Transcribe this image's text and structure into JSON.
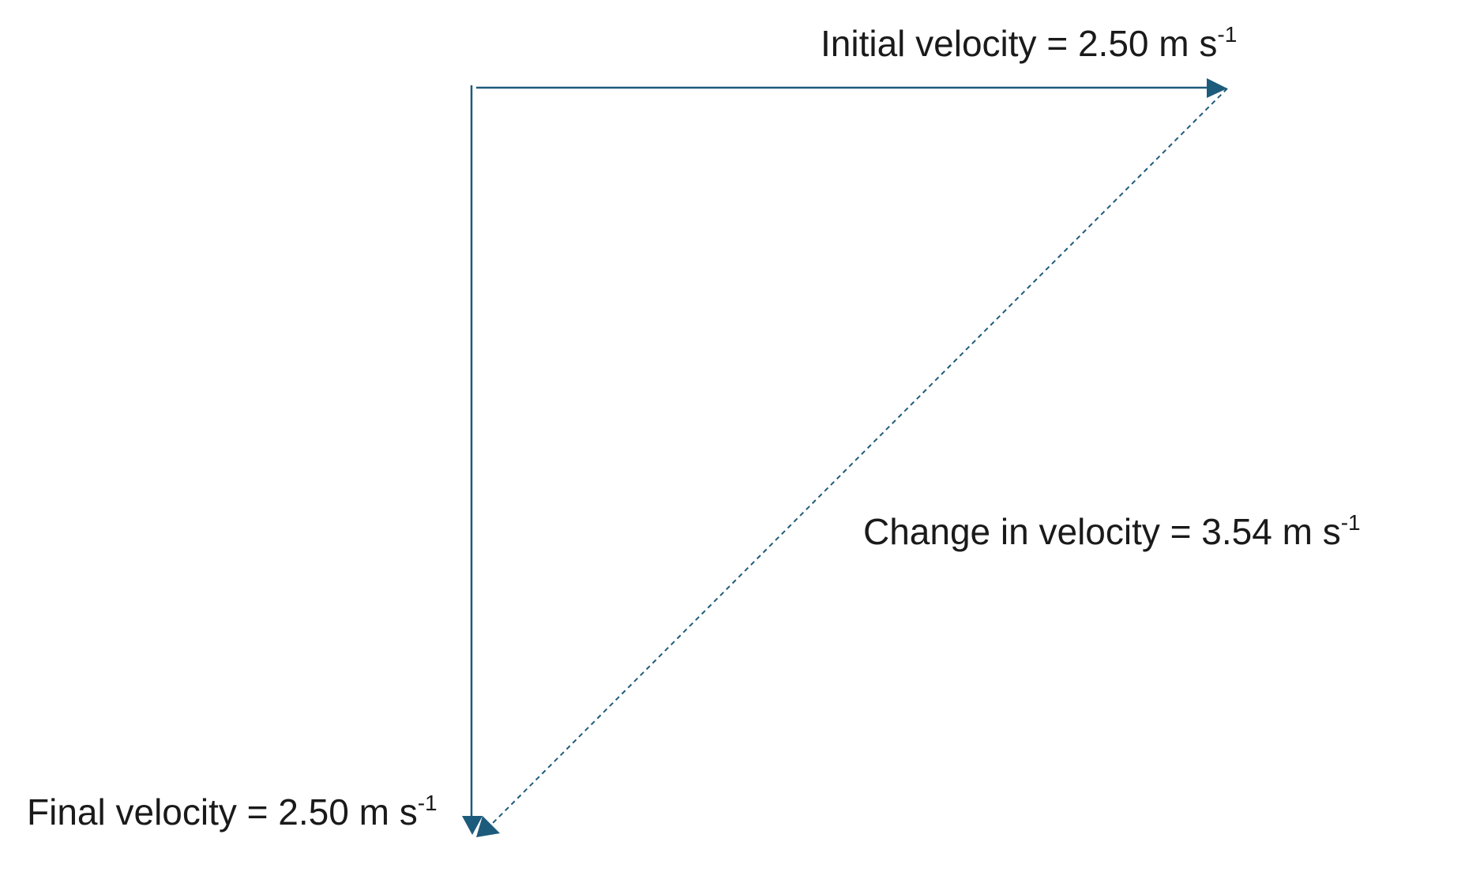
{
  "colors": {
    "vector": "#1d5b7c",
    "text": "#1a1a1a",
    "background": "#ffffff"
  },
  "labels": {
    "initial": {
      "text": "Initial velocity = 2.50 m s",
      "exponent": "-1"
    },
    "change": {
      "text": "Change in velocity = 3.54 m s",
      "exponent": "-1"
    },
    "final": {
      "text": "Final velocity = 2.50 m s",
      "exponent": "-1"
    }
  }
}
